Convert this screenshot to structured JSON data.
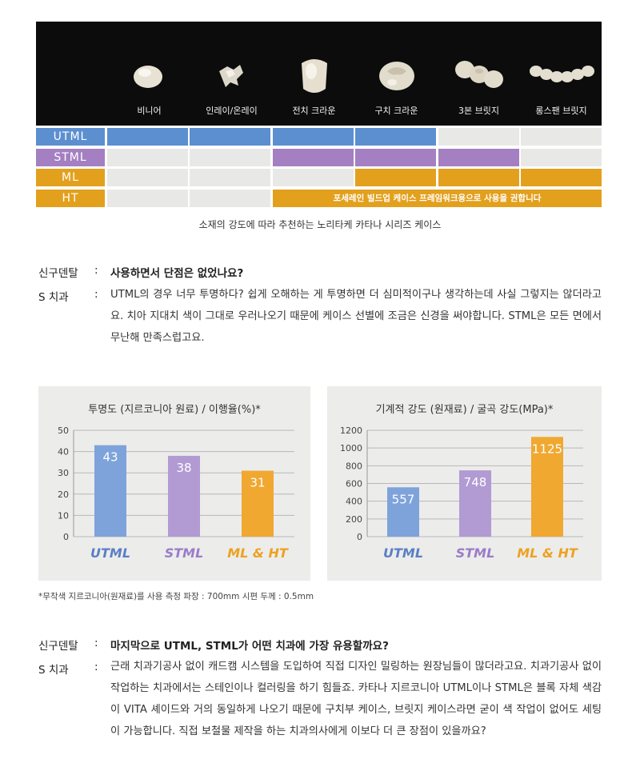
{
  "restorations": [
    {
      "label": "비니어",
      "icon": "veneer-icon"
    },
    {
      "label": "인레이/온레이",
      "icon": "inlay-icon"
    },
    {
      "label": "전치 크라운",
      "icon": "anterior-crown-icon"
    },
    {
      "label": "구치 크라운",
      "icon": "posterior-crown-icon"
    },
    {
      "label": "3본 브릿지",
      "icon": "three-unit-bridge-icon"
    },
    {
      "label": "롱스팬 브릿지",
      "icon": "long-span-bridge-icon"
    }
  ],
  "materials": [
    {
      "name": "UTML",
      "color": "#5b8fd0",
      "filled": [
        true,
        true,
        true,
        true,
        false,
        false
      ]
    },
    {
      "name": "STML",
      "color": "#a47fc1",
      "filled": [
        false,
        false,
        true,
        true,
        true,
        false
      ]
    },
    {
      "name": "ML",
      "color": "#e3a01d",
      "filled": [
        false,
        false,
        false,
        true,
        true,
        true
      ]
    },
    {
      "name": "HT",
      "color": "#e3a01d",
      "filled": [
        false,
        false,
        true,
        true,
        true,
        true
      ],
      "note": "포세레인 빌드업 케이스 프레임워크용으로 사용을 권합니다"
    }
  ],
  "caption": "소재의 강도에 따라 추천하는 노리타케 카타나 시리즈 케이스",
  "qa1": {
    "q_speaker": "신구덴탈",
    "question": "사용하면서 단점은 없었나요?",
    "a_speaker": "S 치과",
    "answer": "UTML의 경우 너무 투명하다? 쉽게 오해하는 게 투명하면 더 심미적이구나 생각하는데 사실 그렇지는 않더라고요. 치아 지대치 색이 그대로 우러나오기 때문에 케이스 선별에 조금은 신경을 써야합니다. STML은 모든 면에서 무난해 만족스럽고요."
  },
  "chart_data": [
    {
      "type": "bar",
      "title": "투명도 (지르코니아 원료) / 이행율(%)*",
      "categories": [
        "UTML",
        "STML",
        "ML & HT"
      ],
      "values": [
        43,
        38,
        31
      ],
      "colors": [
        "#7ea3db",
        "#b29ad3",
        "#f0a830"
      ],
      "label_colors": [
        "#5a7fc4",
        "#9a7cc8",
        "#eca21f"
      ],
      "ylim": [
        0,
        50
      ],
      "yticks": [
        0,
        10,
        20,
        30,
        40,
        50
      ],
      "grid": true
    },
    {
      "type": "bar",
      "title": "기계적 강도 (원재료) / 굴곡 강도(MPa)*",
      "categories": [
        "UTML",
        "STML",
        "ML & HT"
      ],
      "values": [
        557,
        748,
        1125
      ],
      "colors": [
        "#7ea3db",
        "#b29ad3",
        "#f0a830"
      ],
      "label_colors": [
        "#5a7fc4",
        "#9a7cc8",
        "#eca21f"
      ],
      "ylim": [
        0,
        1200
      ],
      "yticks": [
        0,
        200,
        400,
        600,
        800,
        1000,
        1200
      ],
      "grid": true
    }
  ],
  "footnote": "*무착색 지르코니아(원재료)를 사용 측정 파장 : 700mm 시편 두께 : 0.5mm",
  "qa2": {
    "q_speaker": "신구덴탈",
    "question": "마지막으로 UTML, STML가 어떤 치과에 가장 유용할까요?",
    "a_speaker": "S 치과",
    "answer": "근래 치과기공사 없이 캐드캠 시스템을 도입하여 직접 디자인 밀링하는 원장님들이 많더라고요. 치과기공사 없이 작업하는 치과에서는 스테인이나 컬러링을 하기 힘들죠. 카타나 지르코니아 UTML이나 STML은 블록 자체 색감이 VITA 셰이드와 거의 동일하게 나오기 때문에 구치부 케이스, 브릿지 케이스라면 굳이 색 작업이 없어도 세팅이 가능합니다. 직접 보철물 제작을 하는 치과의사에게 이보다 더 큰 장점이 있을까요?"
  },
  "colon": ":"
}
